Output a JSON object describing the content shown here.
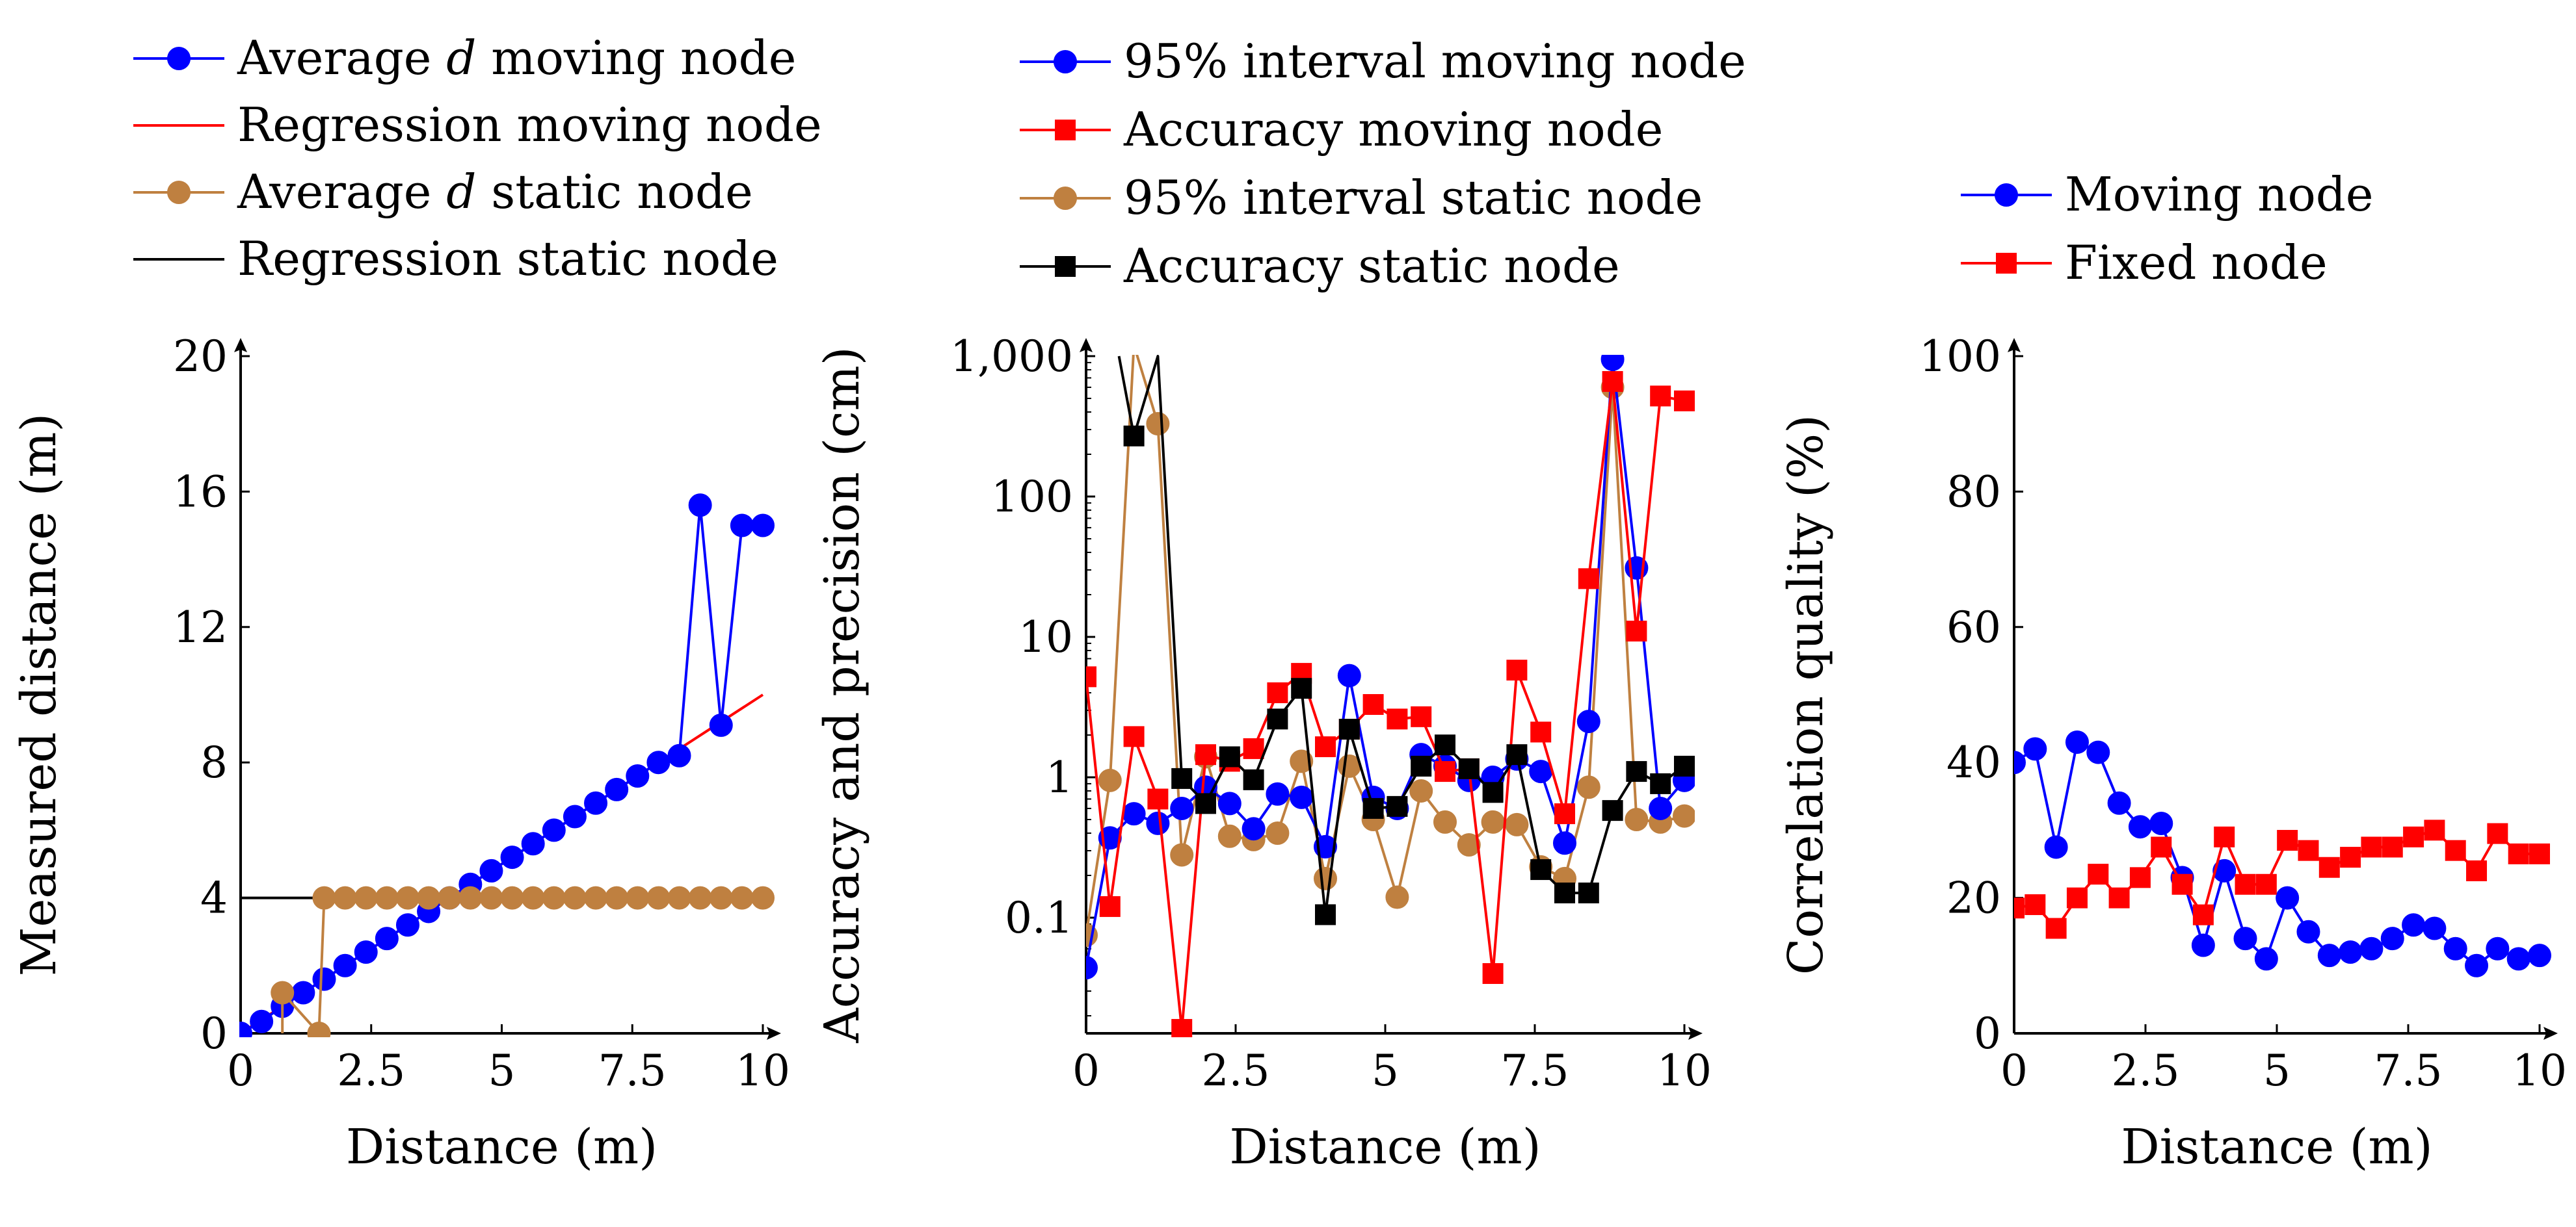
{
  "colors": {
    "blue": "#0000ff",
    "red": "#ff0000",
    "brown": "#bf8040",
    "black": "#000000"
  },
  "legends": [
    {
      "entries": [
        {
          "label_pre": "Average ",
          "label_italic": "d",
          "label_post": " moving node",
          "color": "blue",
          "marker": "circle",
          "line": true
        },
        {
          "label_pre": "Regression moving node",
          "color": "red",
          "marker": "none",
          "line": true
        },
        {
          "label_pre": "Average ",
          "label_italic": "d",
          "label_post": " static node",
          "color": "brown",
          "marker": "circle",
          "line": true
        },
        {
          "label_pre": "Regression static node",
          "color": "black",
          "marker": "none",
          "line": true
        }
      ]
    },
    {
      "entries": [
        {
          "label_pre": "95% interval moving node",
          "color": "blue",
          "marker": "circle",
          "line": true
        },
        {
          "label_pre": "Accuracy moving node",
          "color": "red",
          "marker": "square",
          "line": true
        },
        {
          "label_pre": "95% interval static node",
          "color": "brown",
          "marker": "circle",
          "line": true
        },
        {
          "label_pre": "Accuracy static node",
          "color": "black",
          "marker": "square",
          "line": true
        }
      ]
    },
    {
      "entries": [
        {
          "label_pre": "Moving node",
          "color": "blue",
          "marker": "circle",
          "line": true
        },
        {
          "label_pre": "Fixed node",
          "color": "red",
          "marker": "square",
          "line": true
        }
      ]
    }
  ],
  "chart_data": [
    {
      "type": "line",
      "title": "",
      "xlabel": "Distance (m)",
      "ylabel": "Measured distance (m)",
      "xlim": [
        0,
        10
      ],
      "ylim": [
        0,
        20
      ],
      "yscale": "linear",
      "xticks": [
        0,
        2.5,
        5,
        7.5,
        10
      ],
      "xtick_labels": [
        "0",
        "2.5",
        "5",
        "7.5",
        "10"
      ],
      "yticks": [
        0,
        4,
        8,
        12,
        16,
        20
      ],
      "ytick_labels": [
        "0",
        "4",
        "8",
        "12",
        "16",
        "20"
      ],
      "series": [
        {
          "name": "Regression moving node",
          "color": "red",
          "marker": "none",
          "x": [
            0,
            10
          ],
          "y": [
            0,
            10
          ]
        },
        {
          "name": "Regression static node",
          "color": "black",
          "marker": "none",
          "x": [
            0,
            10
          ],
          "y": [
            4,
            4
          ]
        },
        {
          "name": "Average d moving node",
          "color": "blue",
          "marker": "circle",
          "x": [
            0,
            0.4,
            0.8,
            1.2,
            1.6,
            2.0,
            2.4,
            2.8,
            3.2,
            3.6,
            4.0,
            4.4,
            4.8,
            5.2,
            5.6,
            6.0,
            6.4,
            6.8,
            7.2,
            7.6,
            8.0,
            8.4,
            8.8,
            9.2,
            9.6,
            10.0
          ],
          "y": [
            0,
            0.35,
            0.8,
            1.2,
            1.6,
            2.0,
            2.4,
            2.8,
            3.2,
            3.6,
            4.0,
            4.4,
            4.8,
            5.2,
            5.6,
            6.0,
            6.4,
            6.8,
            7.2,
            7.6,
            8.0,
            8.2,
            15.6,
            9.1,
            15.0,
            15.0
          ]
        },
        {
          "name": "Average d static node",
          "color": "brown",
          "marker": "circle",
          "x": [
            0.8,
            1.5,
            1.6,
            2.0,
            2.4,
            2.8,
            3.2,
            3.6,
            4.0,
            4.4,
            4.8,
            5.2,
            5.6,
            6.0,
            6.4,
            6.8,
            7.2,
            7.6,
            8.0,
            8.4,
            8.8,
            9.2,
            9.6,
            10.0
          ],
          "y": [
            1.2,
            0,
            4,
            4,
            4,
            4,
            4,
            4,
            4,
            4,
            4,
            4,
            4,
            4,
            4,
            4,
            4,
            4,
            4,
            4,
            4,
            4,
            4,
            4
          ],
          "line_x": [
            0.8,
            0.8,
            1.5,
            1.6,
            2.0,
            2.4,
            2.8,
            3.2,
            3.6,
            4.0,
            4.4,
            4.8,
            5.2,
            5.6,
            6.0,
            6.4,
            6.8,
            7.2,
            7.6,
            8.0,
            8.4,
            8.8,
            9.2,
            9.6,
            10.0
          ],
          "line_y": [
            0,
            1.2,
            0,
            4,
            4,
            4,
            4,
            4,
            4,
            4,
            4,
            4,
            4,
            4,
            4,
            4,
            4,
            4,
            4,
            4,
            4,
            4,
            4,
            4,
            4
          ]
        }
      ]
    },
    {
      "type": "line",
      "title": "",
      "xlabel": "Distance (m)",
      "ylabel": "Accuracy and precision (cm)",
      "xlim": [
        0,
        10
      ],
      "ylim": [
        0.015,
        1000
      ],
      "yscale": "log",
      "xticks": [
        0,
        2.5,
        5,
        7.5,
        10
      ],
      "xtick_labels": [
        "0",
        "2.5",
        "5",
        "7.5",
        "10"
      ],
      "yticks": [
        0.1,
        1,
        10,
        100,
        1000
      ],
      "ytick_labels": [
        "0.1",
        "1",
        "10",
        "100",
        "1,000"
      ],
      "series": [
        {
          "name": "95% interval static node",
          "color": "brown",
          "marker": "circle",
          "x": [
            0,
            0.4,
            0.8,
            1.2,
            1.6,
            2.0,
            2.4,
            2.8,
            3.2,
            3.6,
            4.0,
            4.4,
            4.8,
            5.2,
            5.6,
            6.0,
            6.4,
            6.8,
            7.2,
            7.6,
            8.0,
            8.4,
            8.8,
            9.2,
            9.6,
            10.0
          ],
          "y": [
            0.075,
            0.95,
            1200,
            330,
            0.28,
            1.4,
            0.38,
            0.36,
            0.4,
            1.3,
            0.19,
            1.2,
            0.5,
            0.14,
            0.8,
            0.48,
            0.33,
            0.48,
            0.46,
            0.23,
            0.19,
            0.85,
            600,
            0.5,
            0.48,
            0.53
          ]
        },
        {
          "name": "95% interval moving node",
          "color": "blue",
          "marker": "circle",
          "x": [
            0,
            0.4,
            0.8,
            1.2,
            1.6,
            2.0,
            2.4,
            2.8,
            3.2,
            3.6,
            4.0,
            4.4,
            4.8,
            5.2,
            5.6,
            6.0,
            6.4,
            6.8,
            7.2,
            7.6,
            8.0,
            8.4,
            8.8,
            9.2,
            9.6,
            10.0
          ],
          "y": [
            0.044,
            0.37,
            0.55,
            0.47,
            0.6,
            0.85,
            0.65,
            0.43,
            0.76,
            0.72,
            0.32,
            5.3,
            0.72,
            0.6,
            1.45,
            1.2,
            0.95,
            1.0,
            1.35,
            1.1,
            0.34,
            2.5,
            950,
            31,
            0.6,
            0.95
          ]
        },
        {
          "name": "Accuracy moving node",
          "color": "red",
          "marker": "square",
          "x": [
            0,
            0.4,
            0.8,
            1.2,
            1.6,
            2.0,
            2.4,
            2.8,
            3.2,
            3.6,
            4.0,
            4.4,
            4.8,
            5.2,
            5.6,
            6.0,
            6.4,
            6.8,
            7.2,
            7.6,
            8.0,
            8.4,
            8.8,
            9.2,
            9.6,
            10.0
          ],
          "y": [
            5.2,
            0.12,
            1.95,
            0.7,
            0.016,
            1.45,
            1.3,
            1.6,
            4.0,
            5.5,
            1.65,
            2.2,
            3.3,
            2.6,
            2.7,
            1.1,
            1.15,
            0.04,
            5.8,
            2.1,
            0.55,
            26,
            660,
            11,
            520,
            480
          ]
        },
        {
          "name": "Accuracy static node",
          "color": "black",
          "marker": "square",
          "x": [
            0.0,
            0.55,
            0.8,
            1.2,
            1.6,
            2.0,
            2.4,
            2.8,
            3.2,
            3.6,
            4.0,
            4.4,
            4.8,
            5.2,
            5.6,
            6.0,
            6.4,
            6.8,
            7.2,
            7.6,
            8.0,
            8.4,
            8.8,
            9.2,
            9.6,
            10.0
          ],
          "y": [
            null,
            1000,
            270,
            1000,
            0.98,
            0.65,
            1.4,
            0.96,
            2.6,
            4.3,
            0.105,
            2.2,
            0.6,
            0.62,
            1.2,
            1.7,
            1.15,
            0.78,
            1.45,
            0.22,
            0.15,
            0.15,
            0.58,
            1.1,
            0.9,
            1.2
          ],
          "marker_mask": [
            false,
            false,
            true,
            false,
            true,
            true,
            true,
            true,
            true,
            true,
            true,
            true,
            true,
            true,
            true,
            true,
            true,
            true,
            true,
            true,
            true,
            true,
            true,
            true,
            true,
            true
          ]
        }
      ]
    },
    {
      "type": "line",
      "title": "",
      "xlabel": "Distance (m)",
      "ylabel": "Correlation quality (%)",
      "xlim": [
        0,
        10
      ],
      "ylim": [
        0,
        100
      ],
      "yscale": "linear",
      "xticks": [
        0,
        2.5,
        5,
        7.5,
        10
      ],
      "xtick_labels": [
        "0",
        "2.5",
        "5",
        "7.5",
        "10"
      ],
      "yticks": [
        0,
        20,
        40,
        60,
        80,
        100
      ],
      "ytick_labels": [
        "0",
        "20",
        "40",
        "60",
        "80",
        "100"
      ],
      "series": [
        {
          "name": "Moving node",
          "color": "blue",
          "marker": "circle",
          "x": [
            0,
            0.4,
            0.8,
            1.2,
            1.6,
            2.0,
            2.4,
            2.8,
            3.2,
            3.6,
            4.0,
            4.4,
            4.8,
            5.2,
            5.6,
            6.0,
            6.4,
            6.8,
            7.2,
            7.6,
            8.0,
            8.4,
            8.8,
            9.2,
            9.6,
            10.0
          ],
          "y": [
            40,
            42,
            27.5,
            43,
            41.5,
            34,
            30.5,
            31,
            23,
            13,
            24,
            14,
            11,
            20,
            15,
            11.5,
            12,
            12.5,
            14,
            16,
            15.5,
            12.5,
            10,
            12.5,
            11,
            11.5
          ]
        },
        {
          "name": "Fixed node",
          "color": "red",
          "marker": "square",
          "x": [
            0,
            0.4,
            0.8,
            1.2,
            1.6,
            2.0,
            2.4,
            2.8,
            3.2,
            3.6,
            4.0,
            4.4,
            4.8,
            5.2,
            5.6,
            6.0,
            6.4,
            6.8,
            7.2,
            7.6,
            8.0,
            8.4,
            8.8,
            9.2,
            9.6,
            10.0
          ],
          "y": [
            18.5,
            19,
            15.5,
            20,
            23.5,
            20,
            23,
            27.5,
            22,
            17.5,
            29,
            22,
            22,
            28.5,
            27,
            24.5,
            26,
            27.5,
            27.5,
            29,
            30,
            27,
            24,
            29.5,
            26.5,
            26.5
          ]
        }
      ]
    }
  ]
}
